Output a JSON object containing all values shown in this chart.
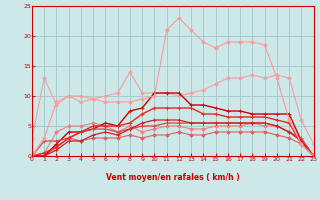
{
  "x": [
    0,
    1,
    2,
    3,
    4,
    5,
    6,
    7,
    8,
    9,
    10,
    11,
    12,
    13,
    14,
    15,
    16,
    17,
    18,
    19,
    20,
    21,
    22,
    23
  ],
  "series": [
    {
      "y": [
        3,
        13,
        8.5,
        10,
        9,
        9.5,
        10,
        10.5,
        14,
        10.5,
        10.5,
        10.5,
        10,
        10.5,
        11,
        12,
        13,
        13,
        13.5,
        13,
        13.5,
        13,
        6,
        2
      ],
      "color": "#f4a0a0",
      "lw": 0.8,
      "marker": "D",
      "ms": 1.8
    },
    {
      "y": [
        0,
        0.5,
        4,
        5,
        5,
        5.5,
        5,
        4,
        5,
        4,
        4.5,
        5,
        5,
        4.5,
        4.5,
        5,
        5,
        5,
        5.5,
        5,
        5,
        4,
        2.5,
        0
      ],
      "color": "#f08080",
      "lw": 0.8,
      "marker": "D",
      "ms": 1.8
    },
    {
      "y": [
        0,
        0,
        1.5,
        3,
        2.5,
        3,
        3,
        3,
        3.5,
        3,
        3.5,
        3.5,
        4,
        3.5,
        3.5,
        4,
        4,
        4,
        4,
        4,
        3.5,
        3,
        2,
        0
      ],
      "color": "#e06060",
      "lw": 0.8,
      "marker": "D",
      "ms": 1.8
    },
    {
      "y": [
        0,
        0,
        2,
        4,
        4,
        4.5,
        5.5,
        5,
        7.5,
        8,
        10.5,
        10.5,
        10.5,
        8.5,
        8.5,
        8,
        7.5,
        7.5,
        7,
        7,
        7,
        7,
        2.5,
        0
      ],
      "color": "#cc0000",
      "lw": 1.0,
      "marker": "+",
      "ms": 3.0
    },
    {
      "y": [
        0,
        2.5,
        2.5,
        3,
        4,
        4.5,
        4.5,
        4,
        4.5,
        5,
        5,
        5.5,
        5.5,
        5.5,
        5.5,
        5.5,
        5.5,
        5.5,
        5.5,
        5.5,
        5,
        4,
        3,
        0
      ],
      "color": "#dd4444",
      "lw": 0.9,
      "marker": "+",
      "ms": 2.5
    },
    {
      "y": [
        0,
        0,
        1,
        2.5,
        2.5,
        3.5,
        4,
        3.5,
        4.5,
        5.5,
        6,
        6,
        6,
        5.5,
        5.5,
        5.5,
        5.5,
        5.5,
        5.5,
        5.5,
        5,
        4,
        2.5,
        0
      ],
      "color": "#cc2222",
      "lw": 0.9,
      "marker": "+",
      "ms": 2.5
    },
    {
      "y": [
        0,
        0.5,
        1.5,
        3,
        4,
        5,
        5,
        5,
        5.5,
        7,
        8,
        8,
        8,
        8,
        7,
        7,
        6.5,
        6.5,
        6.5,
        6.5,
        6,
        5.5,
        2,
        0
      ],
      "color": "#ee2222",
      "lw": 1.0,
      "marker": "+",
      "ms": 3.0
    },
    {
      "y": [
        0,
        3,
        9,
        10,
        10,
        9.5,
        9,
        9,
        9,
        9.5,
        10,
        21,
        23,
        21,
        19,
        18,
        19,
        19,
        19,
        18.5,
        13,
        6,
        2,
        0
      ],
      "color": "#ff9999",
      "lw": 0.8,
      "marker": "D",
      "ms": 1.8
    }
  ],
  "xlabel": "Vent moyen/en rafales ( km/h )",
  "xlim": [
    0,
    23
  ],
  "ylim": [
    0,
    25
  ],
  "xticks": [
    0,
    1,
    2,
    3,
    4,
    5,
    6,
    7,
    8,
    9,
    10,
    11,
    12,
    13,
    14,
    15,
    16,
    17,
    18,
    19,
    20,
    21,
    22,
    23
  ],
  "yticks": [
    0,
    5,
    10,
    15,
    20,
    25
  ],
  "bg_color": "#cce8e8",
  "grid_color": "#aacccc",
  "line_color": "#cc0000",
  "arrow_color": "#cc0000"
}
